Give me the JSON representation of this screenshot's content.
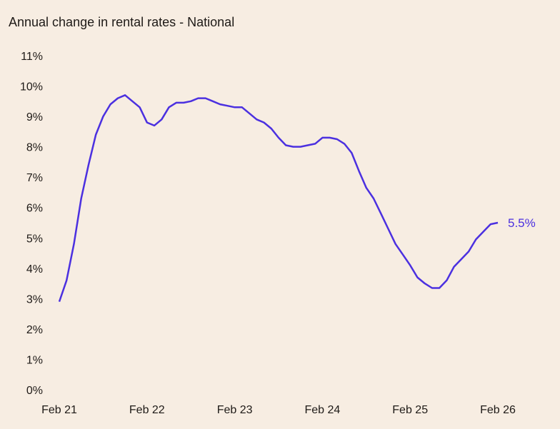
{
  "chart_data": {
    "type": "line",
    "title": "Annual change in rental rates - National",
    "xlabel": "",
    "ylabel": "",
    "x_start": "Feb 21",
    "x_end": "Feb 26",
    "x_frequency": "monthly",
    "x_tick_labels": [
      "Feb 21",
      "Feb 22",
      "Feb 23",
      "Feb 24",
      "Feb 25",
      "Feb 26"
    ],
    "y_tick_labels": [
      "0%",
      "1%",
      "2%",
      "3%",
      "4%",
      "5%",
      "6%",
      "7%",
      "8%",
      "9%",
      "10%",
      "11%"
    ],
    "ylim": [
      0,
      11
    ],
    "grid": false,
    "line_color": "#4b30e0",
    "end_label": "5.5%",
    "series": [
      {
        "values": [
          2.9,
          3.6,
          4.8,
          6.3,
          7.4,
          8.4,
          9.0,
          9.4,
          9.6,
          9.7,
          9.5,
          9.3,
          8.8,
          8.7,
          8.9,
          9.3,
          9.45,
          9.45,
          9.5,
          9.6,
          9.6,
          9.5,
          9.4,
          9.35,
          9.3,
          9.3,
          9.1,
          8.9,
          8.8,
          8.6,
          8.3,
          8.05,
          8.0,
          8.0,
          8.05,
          8.1,
          8.3,
          8.3,
          8.25,
          8.1,
          7.8,
          7.2,
          6.65,
          6.3,
          5.8,
          5.3,
          4.8,
          4.45,
          4.1,
          3.7,
          3.5,
          3.35,
          3.35,
          3.6,
          4.05,
          4.3,
          4.55,
          4.95,
          5.2,
          5.45,
          5.5
        ]
      }
    ]
  }
}
